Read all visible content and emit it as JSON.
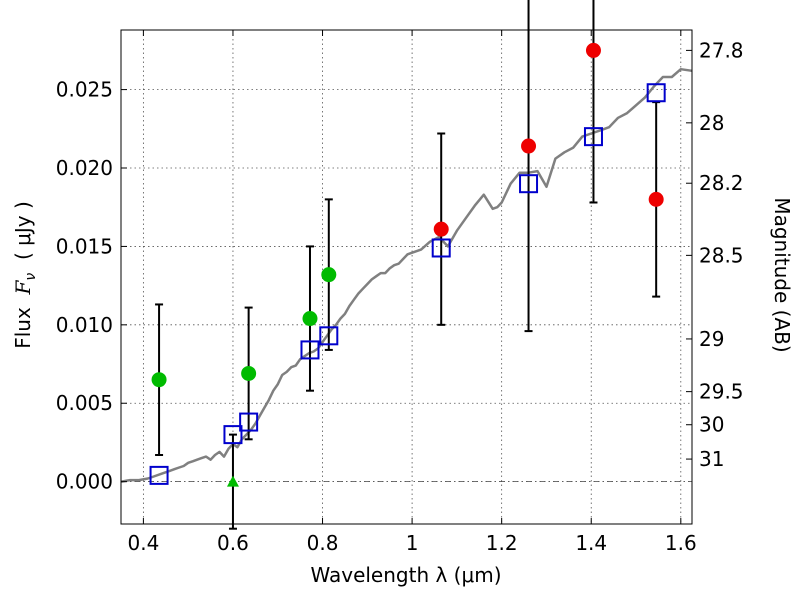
{
  "chart_data": {
    "type": "scatter",
    "title": "",
    "xlabel": "Wavelength  λ (μm)",
    "ylabel_parts": [
      "Flux  ",
      "F",
      "ν",
      "  ( μJy )"
    ],
    "ylabel_right": "Magnitude (AB)",
    "xlim": [
      0.35,
      1.625
    ],
    "ylim": [
      -0.0027,
      0.0288
    ],
    "grid": true,
    "xticks": [
      {
        "value": 0.4,
        "label": "0.4"
      },
      {
        "value": 0.6,
        "label": "0.6"
      },
      {
        "value": 0.8,
        "label": "0.8"
      },
      {
        "value": 1.0,
        "label": "1"
      },
      {
        "value": 1.2,
        "label": "1.2"
      },
      {
        "value": 1.4,
        "label": "1.4"
      },
      {
        "value": 1.6,
        "label": "1.6"
      }
    ],
    "yticks": [
      {
        "value": 0.0,
        "label": "0.000"
      },
      {
        "value": 0.005,
        "label": "0.005"
      },
      {
        "value": 0.01,
        "label": "0.010"
      },
      {
        "value": 0.015,
        "label": "0.015"
      },
      {
        "value": 0.02,
        "label": "0.020"
      },
      {
        "value": 0.025,
        "label": "0.025"
      }
    ],
    "right_ticks": [
      {
        "label": "27.8",
        "flux": 0.0275
      },
      {
        "label": "28",
        "flux": 0.02288
      },
      {
        "label": "28.2",
        "flux": 0.01903
      },
      {
        "label": "28.5",
        "flux": 0.01443
      },
      {
        "label": "29",
        "flux": 0.0091
      },
      {
        "label": "29.5",
        "flux": 0.00574
      },
      {
        "label": "30",
        "flux": 0.00363
      },
      {
        "label": "31",
        "flux": 0.00144
      }
    ],
    "colors": {
      "model": "#808080",
      "synthetic": "#0000cc",
      "detected_hst": "#00bb00",
      "detected_ir": "#ee0000",
      "errorbar": "#000000"
    },
    "model_sed": {
      "x": [
        0.35,
        0.37,
        0.39,
        0.41,
        0.42,
        0.44,
        0.46,
        0.47,
        0.48,
        0.49,
        0.5,
        0.51,
        0.52,
        0.53,
        0.54,
        0.55,
        0.56,
        0.57,
        0.58,
        0.59,
        0.6,
        0.61,
        0.62,
        0.63,
        0.64,
        0.65,
        0.66,
        0.67,
        0.68,
        0.69,
        0.7,
        0.71,
        0.72,
        0.73,
        0.74,
        0.75,
        0.76,
        0.77,
        0.78,
        0.79,
        0.8,
        0.81,
        0.82,
        0.83,
        0.84,
        0.85,
        0.86,
        0.87,
        0.88,
        0.89,
        0.9,
        0.91,
        0.92,
        0.93,
        0.94,
        0.95,
        0.96,
        0.97,
        0.98,
        0.99,
        1.0,
        1.02,
        1.04,
        1.06,
        1.08,
        1.1,
        1.12,
        1.14,
        1.16,
        1.18,
        1.19,
        1.2,
        1.22,
        1.24,
        1.26,
        1.28,
        1.3,
        1.32,
        1.34,
        1.36,
        1.38,
        1.4,
        1.42,
        1.44,
        1.46,
        1.48,
        1.5,
        1.52,
        1.54,
        1.56,
        1.58,
        1.6,
        1.625
      ],
      "y": [
        0.0,
        0.0001,
        0.0001,
        0.0002,
        0.0003,
        0.0005,
        0.0007,
        0.0008,
        0.0009,
        0.001,
        0.0012,
        0.0013,
        0.0014,
        0.0015,
        0.0016,
        0.0014,
        0.0017,
        0.0019,
        0.0016,
        0.0021,
        0.0024,
        0.0022,
        0.0027,
        0.003,
        0.0033,
        0.0037,
        0.0042,
        0.0047,
        0.0052,
        0.0058,
        0.0062,
        0.0068,
        0.007,
        0.0073,
        0.0074,
        0.0078,
        0.008,
        0.0082,
        0.0083,
        0.0085,
        0.0089,
        0.0093,
        0.0097,
        0.01,
        0.0104,
        0.0107,
        0.0112,
        0.0116,
        0.012,
        0.0123,
        0.0126,
        0.0129,
        0.0131,
        0.0133,
        0.0133,
        0.0136,
        0.0138,
        0.0139,
        0.0142,
        0.0145,
        0.0146,
        0.0148,
        0.0153,
        0.0156,
        0.015,
        0.016,
        0.0168,
        0.0176,
        0.0183,
        0.0174,
        0.0175,
        0.0178,
        0.019,
        0.0197,
        0.0197,
        0.0198,
        0.0188,
        0.0206,
        0.021,
        0.0213,
        0.022,
        0.0222,
        0.0224,
        0.0226,
        0.0232,
        0.0235,
        0.024,
        0.0245,
        0.0252,
        0.0258,
        0.0258,
        0.0263,
        0.0262
      ]
    },
    "synthetic_photometry": {
      "x": [
        0.435,
        0.6,
        0.635,
        0.772,
        0.814,
        1.065,
        1.26,
        1.405,
        1.545
      ],
      "y": [
        0.0004,
        0.003,
        0.0038,
        0.0084,
        0.0093,
        0.0149,
        0.019,
        0.022,
        0.0248
      ]
    },
    "observed_hst": {
      "x": [
        0.435,
        0.635,
        0.772,
        0.814
      ],
      "y": [
        0.0065,
        0.0069,
        0.0104,
        0.0132
      ],
      "err": [
        0.0048,
        0.0042,
        0.0046,
        0.0048
      ]
    },
    "observed_ir": {
      "x": [
        1.065,
        1.26,
        1.405,
        1.545
      ],
      "y": [
        0.0161,
        0.0214,
        0.0275,
        0.018
      ],
      "err": [
        0.0061,
        0.0118,
        0.0097,
        0.0062
      ]
    },
    "upper_limit": {
      "x": 0.6,
      "y": 0.0,
      "err": 0.003
    }
  }
}
